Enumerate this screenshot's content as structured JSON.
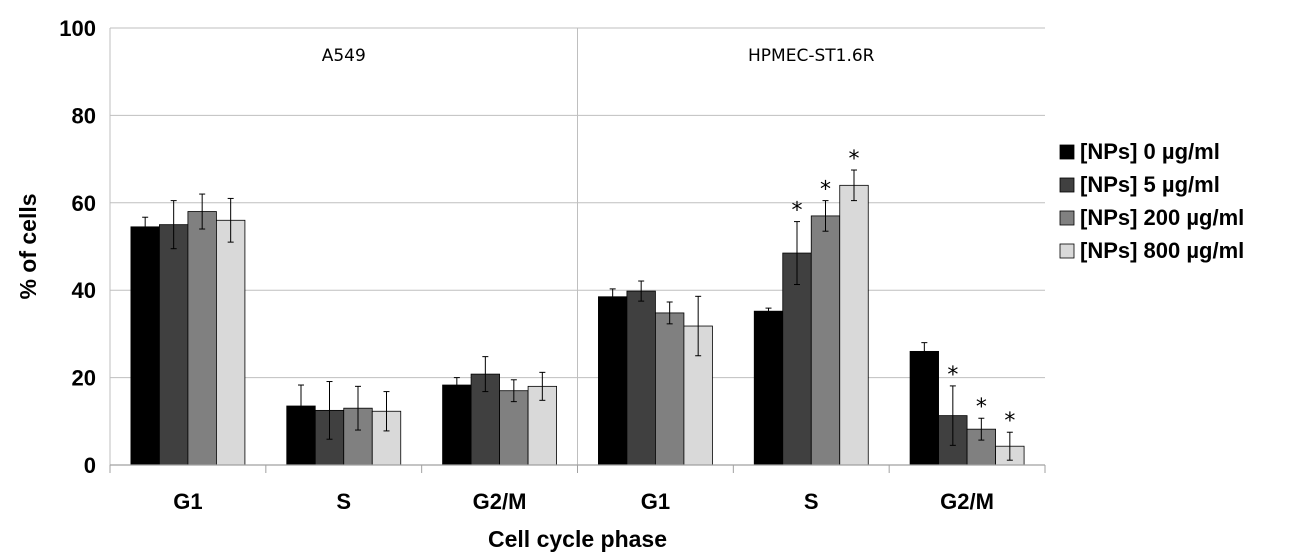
{
  "chart_data": {
    "type": "bar",
    "ylabel": "% of cells",
    "xlabel": "Cell cycle phase",
    "ylim": [
      0,
      100
    ],
    "yticks": [
      0,
      20,
      40,
      60,
      80,
      100
    ],
    "grid": true,
    "legend_position": "right",
    "panels": [
      "A549",
      "HPMEC-ST1.6R"
    ],
    "categories": [
      "G1",
      "S",
      "G2/M",
      "G1",
      "S",
      "G2/M"
    ],
    "series": [
      {
        "name": "[NPs]  0 µg/ml",
        "color": "#000000",
        "values": [
          54.5,
          13.5,
          18.3,
          38.5,
          35.2,
          26.0
        ],
        "errors": [
          2.2,
          4.8,
          1.7,
          1.8,
          0.7,
          2.0
        ],
        "significant": [
          false,
          false,
          false,
          false,
          false,
          false
        ]
      },
      {
        "name": "[NPs]  5 µg/ml",
        "color": "#404040",
        "values": [
          55.0,
          12.5,
          20.8,
          39.8,
          48.5,
          11.3
        ],
        "errors": [
          5.5,
          6.6,
          4.0,
          2.3,
          7.2,
          6.8
        ],
        "significant": [
          false,
          false,
          false,
          false,
          true,
          true
        ]
      },
      {
        "name": "[NPs]  200 µg/ml",
        "color": "#808080",
        "values": [
          58.0,
          13.0,
          17.0,
          34.8,
          57.0,
          8.2
        ],
        "errors": [
          4.0,
          5.0,
          2.5,
          2.5,
          3.5,
          2.5
        ],
        "significant": [
          false,
          false,
          false,
          false,
          true,
          true
        ]
      },
      {
        "name": "[NPs]  800 µg/ml",
        "color": "#d9d9d9",
        "values": [
          56.0,
          12.3,
          18.0,
          31.8,
          64.0,
          4.3
        ],
        "errors": [
          5.0,
          4.5,
          3.2,
          6.8,
          3.5,
          3.2
        ],
        "significant": [
          false,
          false,
          false,
          false,
          true,
          true
        ]
      }
    ],
    "significance_marker": "*"
  }
}
